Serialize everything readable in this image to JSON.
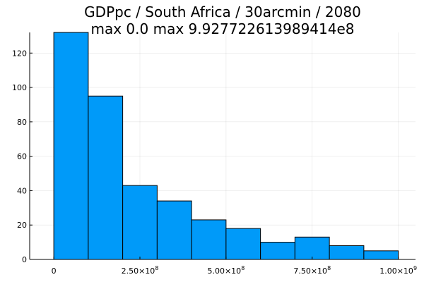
{
  "chart_data": {
    "type": "bar",
    "title": "GDPpc / South Africa / 30arcmin / 2080",
    "subtitle": "max 0.0  max 9.927722613989414e8",
    "xlabel": "",
    "ylabel": "",
    "bin_edges": [
      0,
      100000000,
      200000000,
      300000000,
      400000000,
      500000000,
      600000000,
      700000000,
      800000000,
      900000000,
      1000000000
    ],
    "values": [
      132,
      95,
      43,
      34,
      23,
      18,
      10,
      13,
      8,
      5
    ],
    "xlim": [
      -70000000,
      1050000000
    ],
    "ylim": [
      0,
      132
    ],
    "x_ticks": [
      {
        "value": 0,
        "mantissa": "0",
        "exponent": ""
      },
      {
        "value": 250000000,
        "mantissa": "2.50×10",
        "exponent": "8"
      },
      {
        "value": 500000000,
        "mantissa": "5.00×10",
        "exponent": "8"
      },
      {
        "value": 750000000,
        "mantissa": "7.50×10",
        "exponent": "8"
      },
      {
        "value": 1000000000,
        "mantissa": "1.00×10",
        "exponent": "9"
      }
    ],
    "y_ticks": [
      0,
      20,
      40,
      60,
      80,
      100,
      120
    ],
    "grid": true,
    "legend": "none",
    "bar_color": "#009af9",
    "edge_color": "#000000"
  }
}
